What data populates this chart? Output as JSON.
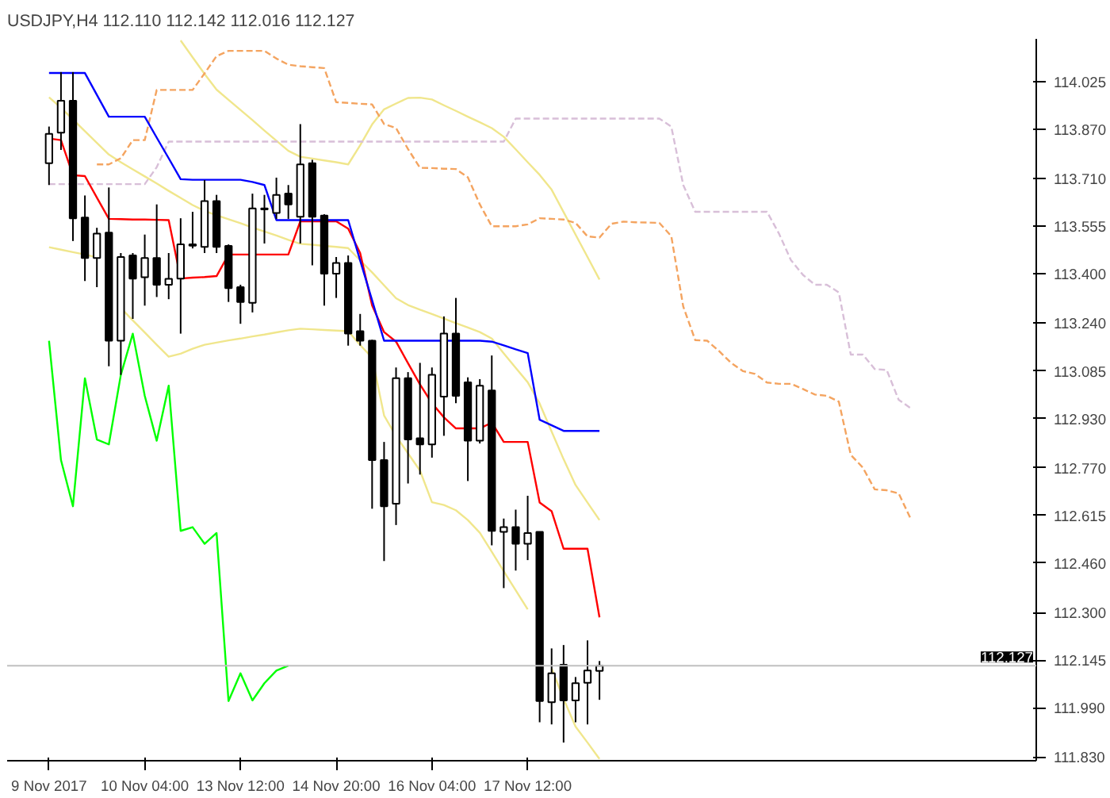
{
  "chart_data": {
    "type": "candlestick",
    "title": "USDJPY,H4  112.110 112.142 112.016 112.127",
    "categories": [
      "9 Nov 2017",
      null,
      null,
      null,
      null,
      null,
      null,
      null,
      "10 Nov 04:00",
      null,
      null,
      null,
      null,
      null,
      null,
      null,
      "13 Nov 12:00",
      null,
      null,
      null,
      null,
      null,
      null,
      null,
      "14 Nov 20:00",
      null,
      null,
      null,
      null,
      null,
      null,
      null,
      "16 Nov 04:00",
      null,
      null,
      null,
      null,
      null,
      null,
      null,
      "17 Nov 12:00",
      null,
      null,
      null,
      null,
      null,
      null,
      null,
      null,
      null,
      null,
      null,
      null,
      null,
      null,
      null,
      null,
      null,
      null,
      null,
      null,
      null,
      null,
      null,
      null,
      null,
      null,
      null,
      null,
      null,
      null,
      null,
      null,
      null,
      null,
      null,
      null,
      null,
      null,
      null,
      null,
      null,
      null
    ],
    "ohlc": [
      [
        113.76,
        113.879,
        113.689,
        113.855
      ],
      [
        113.859,
        114.056,
        113.803,
        113.963
      ],
      [
        113.963,
        114.056,
        113.507,
        113.581
      ],
      [
        113.583,
        113.655,
        113.377,
        113.452
      ],
      [
        113.452,
        113.55,
        113.357,
        113.531
      ],
      [
        113.534,
        113.681,
        113.1,
        113.183
      ],
      [
        113.183,
        113.468,
        113.072,
        113.455
      ],
      [
        113.46,
        113.468,
        113.254,
        113.385
      ],
      [
        113.389,
        113.528,
        113.297,
        113.452
      ],
      [
        113.452,
        113.626,
        113.325,
        113.365
      ],
      [
        113.365,
        113.468,
        113.318,
        113.384
      ],
      [
        113.385,
        113.581,
        113.206,
        113.496
      ],
      [
        113.496,
        113.602,
        113.483,
        113.492
      ],
      [
        113.488,
        113.705,
        113.468,
        113.637
      ],
      [
        113.637,
        113.657,
        113.468,
        113.488
      ],
      [
        113.491,
        113.496,
        113.309,
        113.354
      ],
      [
        113.357,
        113.365,
        113.238,
        113.309
      ],
      [
        113.306,
        113.661,
        113.275,
        113.613
      ],
      [
        113.61,
        113.657,
        113.499,
        113.613
      ],
      [
        113.598,
        113.713,
        113.579,
        113.657
      ],
      [
        113.661,
        113.689,
        113.579,
        113.626
      ],
      [
        113.586,
        113.887,
        113.499,
        113.756
      ],
      [
        113.76,
        113.771,
        113.428,
        113.586
      ],
      [
        113.59,
        113.594,
        113.297,
        113.401
      ],
      [
        113.401,
        113.455,
        113.322,
        113.436
      ],
      [
        113.436,
        113.46,
        113.167,
        113.206
      ],
      [
        113.214,
        113.27,
        113.167,
        113.183
      ],
      [
        113.183,
        113.186,
        112.637,
        112.795
      ],
      [
        112.795,
        112.854,
        112.467,
        112.645
      ],
      [
        112.653,
        113.096,
        112.584,
        113.061
      ],
      [
        113.061,
        113.081,
        112.719,
        112.862
      ],
      [
        112.866,
        113.111,
        112.748,
        112.846
      ],
      [
        112.846,
        113.096,
        112.803,
        113.072
      ],
      [
        113.001,
        113.262,
        112.874,
        113.206
      ],
      [
        113.206,
        113.322,
        112.98,
        113.004
      ],
      [
        113.048,
        113.064,
        112.727,
        112.858
      ],
      [
        112.858,
        113.058,
        112.849,
        113.037
      ],
      [
        113.021,
        113.135,
        112.518,
        112.565
      ],
      [
        112.562,
        112.605,
        112.379,
        112.577
      ],
      [
        112.577,
        112.634,
        112.436,
        112.523
      ],
      [
        112.523,
        112.679,
        112.47,
        112.558
      ],
      [
        112.562,
        112.562,
        111.943,
        112.012
      ],
      [
        112.008,
        112.183,
        111.936,
        112.102
      ],
      [
        112.13,
        112.194,
        111.877,
        112.014
      ],
      [
        112.014,
        112.09,
        111.943,
        112.07
      ],
      [
        112.071,
        112.209,
        111.936,
        112.111
      ],
      [
        112.11,
        112.142,
        112.016,
        112.127
      ],
      null,
      null,
      null,
      null,
      null,
      null,
      null,
      null,
      null,
      null,
      null,
      null,
      null,
      null,
      null,
      null,
      null,
      null,
      null,
      null,
      null,
      null,
      null,
      null,
      null,
      null,
      null,
      null,
      null,
      null,
      null,
      null,
      null,
      null,
      null,
      null
    ],
    "series": [
      {
        "type": "line",
        "color": "#f0e68c",
        "line_style": "solid",
        "values": [
          113.974,
          113.94,
          113.902,
          113.864,
          113.826,
          113.788,
          113.763,
          113.74,
          113.717,
          113.694,
          113.67,
          113.647,
          113.624,
          113.605,
          113.591,
          113.578,
          113.565,
          113.551,
          113.538,
          113.525,
          113.511,
          113.498,
          113.495,
          113.491,
          113.488,
          113.484,
          113.444,
          113.405,
          113.363,
          113.321,
          113.299,
          113.284,
          113.27,
          113.255,
          113.24,
          113.226,
          113.211,
          113.19,
          113.142,
          113.095,
          113.048,
          112.979,
          112.888,
          112.798,
          112.714,
          112.657,
          112.6,
          null,
          null,
          null,
          null,
          null,
          null,
          null,
          null,
          null,
          null,
          null,
          null,
          null,
          null,
          null,
          null,
          null,
          null,
          null,
          null,
          null,
          null,
          null,
          null,
          null,
          null,
          null,
          null,
          null,
          null,
          null,
          null,
          null,
          null,
          null,
          null
        ]
      },
      {
        "type": "line",
        "color": "#f0e68c",
        "line_style": "solid",
        "values": [
          null,
          null,
          null,
          null,
          null,
          null,
          null,
          null,
          null,
          null,
          null,
          114.159,
          114.104,
          114.05,
          113.999,
          113.966,
          113.933,
          113.9,
          113.866,
          113.833,
          113.8,
          113.781,
          113.775,
          113.769,
          113.763,
          113.756,
          113.818,
          113.886,
          113.935,
          113.954,
          113.972,
          113.973,
          113.967,
          113.948,
          113.93,
          113.911,
          113.893,
          113.874,
          113.846,
          113.805,
          113.763,
          113.722,
          113.674,
          113.601,
          113.528,
          113.455,
          113.382,
          null,
          null,
          null,
          null,
          null,
          null,
          null,
          null,
          null,
          null,
          null,
          null,
          null,
          null,
          null,
          null,
          null,
          null,
          null,
          null,
          null,
          null,
          null,
          null,
          null,
          null,
          null,
          null,
          null,
          null,
          null,
          null,
          null,
          null,
          null,
          null
        ]
      },
      {
        "type": "line",
        "color": "#f0e68c",
        "line_style": "solid",
        "values": [
          113.487,
          113.479,
          113.471,
          113.463,
          113.454,
          null,
          113.289,
          113.249,
          113.21,
          113.17,
          113.131,
          113.141,
          113.157,
          113.17,
          113.177,
          113.184,
          113.19,
          113.197,
          113.203,
          113.21,
          113.217,
          113.222,
          113.22,
          113.218,
          113.216,
          113.214,
          113.169,
          113.128,
          112.94,
          112.873,
          112.817,
          112.761,
          112.658,
          112.649,
          112.632,
          112.6,
          112.559,
          112.497,
          112.434,
          112.372,
          112.31,
          null,
          112.118,
          112.019,
          111.929,
          111.877,
          111.824,
          null,
          null,
          null,
          null,
          null,
          null,
          null,
          null,
          null,
          null,
          null,
          null,
          null,
          null,
          null,
          null,
          null,
          null,
          null,
          null,
          null,
          null,
          null,
          null,
          null,
          null,
          null,
          null,
          null,
          null,
          null,
          null,
          null,
          null,
          null,
          null
        ]
      },
      {
        "type": "line",
        "color": "#f4a460",
        "line_style": "dashed",
        "values": [
          null,
          null,
          null,
          null,
          113.756,
          113.756,
          113.776,
          113.835,
          113.835,
          113.998,
          113.998,
          113.998,
          113.998,
          114.052,
          114.108,
          114.125,
          114.125,
          114.125,
          114.125,
          114.1,
          114.08,
          114.075,
          114.072,
          114.069,
          113.958,
          113.956,
          113.953,
          113.951,
          113.887,
          113.874,
          113.806,
          113.745,
          113.744,
          113.742,
          113.741,
          113.714,
          113.626,
          113.555,
          113.555,
          113.555,
          113.561,
          113.581,
          113.579,
          113.577,
          113.566,
          113.522,
          113.518,
          113.563,
          113.57,
          113.568,
          113.567,
          113.566,
          113.523,
          113.294,
          113.185,
          113.183,
          113.149,
          113.111,
          113.084,
          113.075,
          113.047,
          113.043,
          113.043,
          113.026,
          113.008,
          113.004,
          112.985,
          112.812,
          112.771,
          112.7,
          112.697,
          112.687,
          112.605,
          null,
          null,
          null,
          null,
          null,
          null,
          null,
          null,
          null,
          null
        ]
      },
      {
        "type": "line",
        "color": "#d8bfd8",
        "line_style": "dashed",
        "values": [
          113.692,
          113.692,
          113.692,
          113.692,
          113.692,
          113.692,
          113.692,
          113.692,
          113.692,
          113.747,
          113.83,
          113.83,
          113.83,
          113.83,
          113.83,
          113.83,
          113.83,
          113.83,
          113.83,
          113.83,
          113.83,
          113.83,
          113.83,
          113.83,
          113.83,
          113.83,
          113.83,
          113.83,
          113.83,
          113.83,
          113.83,
          113.83,
          113.83,
          113.83,
          113.83,
          113.83,
          113.83,
          113.83,
          113.83,
          113.905,
          113.905,
          113.905,
          113.905,
          113.905,
          113.905,
          113.905,
          113.905,
          113.905,
          113.905,
          113.905,
          113.905,
          113.905,
          113.879,
          113.689,
          113.602,
          113.602,
          113.602,
          113.602,
          113.602,
          113.602,
          113.602,
          113.531,
          113.445,
          113.397,
          113.365,
          113.365,
          113.34,
          113.138,
          113.138,
          113.091,
          113.088,
          112.991,
          112.964,
          null,
          null,
          null,
          null,
          null,
          null,
          null,
          null,
          null,
          null
        ]
      },
      {
        "type": "line",
        "color": "#ff0000",
        "line_style": "solid",
        "values": [
          113.84,
          113.835,
          113.721,
          113.718,
          113.648,
          113.579,
          113.578,
          113.577,
          113.577,
          113.576,
          113.575,
          113.385,
          113.388,
          113.39,
          113.393,
          113.463,
          113.463,
          113.463,
          113.463,
          113.463,
          113.463,
          113.571,
          113.571,
          113.571,
          113.571,
          113.547,
          113.468,
          113.298,
          113.211,
          113.18,
          113.11,
          113.041,
          112.98,
          112.934,
          112.898,
          112.898,
          112.898,
          112.917,
          112.854,
          112.854,
          112.854,
          112.657,
          112.629,
          112.507,
          112.507,
          112.507,
          112.284,
          null,
          null,
          null,
          null,
          null,
          null,
          null,
          null,
          null,
          null,
          null,
          null,
          null,
          null,
          null,
          null,
          null,
          null,
          null,
          null,
          null,
          null,
          null,
          null,
          null,
          null,
          null,
          null,
          null,
          null,
          null,
          null,
          null,
          null,
          null,
          null
        ]
      },
      {
        "type": "line",
        "color": "#0000ff",
        "line_style": "solid",
        "values": [
          114.053,
          114.053,
          114.053,
          114.053,
          113.982,
          113.911,
          113.911,
          113.911,
          113.911,
          113.843,
          113.776,
          113.708,
          113.706,
          113.706,
          113.706,
          113.706,
          113.706,
          113.699,
          113.689,
          113.575,
          113.575,
          113.575,
          113.575,
          113.575,
          113.575,
          113.575,
          113.444,
          113.314,
          113.183,
          113.183,
          113.183,
          113.183,
          113.183,
          113.183,
          113.183,
          113.183,
          113.183,
          113.18,
          113.168,
          113.155,
          113.143,
          112.926,
          112.908,
          112.89,
          112.89,
          112.89,
          112.89,
          null,
          null,
          null,
          null,
          null,
          null,
          null,
          null,
          null,
          null,
          null,
          null,
          null,
          null,
          null,
          null,
          null,
          null,
          null,
          null,
          null,
          null,
          null,
          null,
          null,
          null,
          null,
          null,
          null,
          null,
          null,
          null,
          null,
          null,
          null,
          null
        ]
      },
      {
        "type": "line",
        "color": "#00ff00",
        "line_style": "solid",
        "values": [
          113.183,
          112.795,
          112.645,
          113.061,
          112.862,
          112.846,
          113.072,
          113.206,
          113.004,
          112.858,
          113.037,
          112.565,
          112.577,
          112.523,
          112.558,
          112.012,
          112.102,
          112.014,
          112.07,
          112.111,
          112.127,
          null,
          null,
          null,
          null,
          null,
          null,
          null,
          null,
          null,
          null,
          null,
          null,
          null,
          null,
          null,
          null,
          null,
          null,
          null,
          null,
          null,
          null,
          null,
          null,
          null,
          null,
          null,
          null,
          null,
          null,
          null,
          null,
          null,
          null,
          null,
          null,
          null,
          null,
          null,
          null,
          null,
          null,
          null,
          null,
          null,
          null,
          null,
          null,
          null,
          null,
          null,
          null,
          null,
          null,
          null,
          null,
          null,
          null,
          null,
          null,
          null,
          null
        ]
      }
    ],
    "ylim": [
      111.818,
      114.164
    ],
    "yticks": [
      114.025,
      {
        "value": 113.87,
        "label": "113.870"
      },
      {
        "value": 113.71,
        "label": "113.710"
      },
      113.555,
      {
        "value": 113.4,
        "label": "113.400"
      },
      {
        "value": 113.24,
        "label": "113.240"
      },
      113.085,
      {
        "value": 112.93,
        "label": "112.930"
      },
      {
        "value": 112.77,
        "label": "112.770"
      },
      112.615,
      {
        "value": 112.46,
        "label": "112.460"
      },
      {
        "value": 112.3,
        "label": "112.300"
      },
      112.145,
      {
        "value": 111.99,
        "label": "111.990"
      },
      {
        "value": 111.83,
        "label": "111.830"
      }
    ],
    "ref_lines": [
      {
        "axis": "y",
        "value": 112.127,
        "label": "112.127",
        "color": "#c0c0c0"
      }
    ]
  }
}
